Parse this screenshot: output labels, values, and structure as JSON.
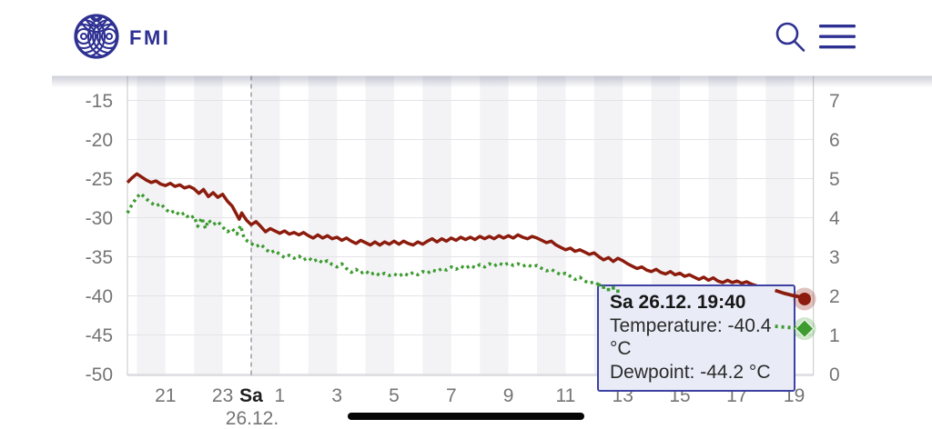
{
  "header": {
    "brand": "FMI",
    "search_icon": "magnifying-glass",
    "menu_icon": "hamburger"
  },
  "tooltip": {
    "title": "Sa 26.12. 19:40",
    "temperature_line": "Temperature: -40.4 °C",
    "dewpoint_line": "Dewpoint: -44.2 °C"
  },
  "colors": {
    "brand_navy": "#2e3192",
    "temperature_red": "#8c1c0d",
    "dewpoint_green": "#3d9b30",
    "tooltip_bg": "#e9ecf7",
    "tooltip_border": "#3d42a2",
    "axis_text": "#757575",
    "day_text": "#1f1f1f",
    "gridline": "#e4e4e8",
    "axis_line": "#cfcfd4",
    "stripe": "#f3f3f6",
    "midnight_dash": "#8f8f8f"
  },
  "chart_data": {
    "type": "line",
    "title": "",
    "xlabel": "",
    "ylabel_left": "",
    "ylabel_right": "",
    "grid": true,
    "legend_position": "none",
    "xlim_hours_rel_midnight": [
      -4.33,
      19.67
    ],
    "ylim_left_celsius": [
      -50.2,
      -11.8
    ],
    "ylim_right": [
      -0.05,
      7.65
    ],
    "left_axis_ticks": [
      -15,
      -20,
      -25,
      -30,
      -35,
      -40,
      -45,
      -50
    ],
    "right_axis_ticks": [
      7,
      6,
      5,
      4,
      3,
      2,
      1,
      0
    ],
    "x_axis_labels": [
      {
        "t": -3,
        "label": "21",
        "bold": false
      },
      {
        "t": -1,
        "label": "23",
        "bold": false
      },
      {
        "t": 0,
        "label": "Sa",
        "bold": true
      },
      {
        "t": 1,
        "label": "1",
        "bold": false
      },
      {
        "t": 3,
        "label": "3",
        "bold": false
      },
      {
        "t": 5,
        "label": "5",
        "bold": false
      },
      {
        "t": 7,
        "label": "7",
        "bold": false
      },
      {
        "t": 9,
        "label": "9",
        "bold": false
      },
      {
        "t": 11,
        "label": "11",
        "bold": false
      },
      {
        "t": 13,
        "label": "13",
        "bold": false
      },
      {
        "t": 15,
        "label": "15",
        "bold": false
      },
      {
        "t": 17,
        "label": "17",
        "bold": false
      },
      {
        "t": 19,
        "label": "19",
        "bold": false
      }
    ],
    "day_label": {
      "t": 0,
      "label": "26.12."
    },
    "midnight_line_t": 0,
    "markers": [
      {
        "series": "Temperature",
        "shape": "circle",
        "value": -40.4
      },
      {
        "series": "Dewpoint",
        "shape": "diamond",
        "value": -44.2
      }
    ],
    "series": [
      {
        "name": "Temperature",
        "unit": "°C",
        "color": "#8c1c0d",
        "style": "solid",
        "points": [
          [
            -4.33,
            -25.5
          ],
          [
            -4.17,
            -24.9
          ],
          [
            -4.0,
            -24.4
          ],
          [
            -3.83,
            -24.8
          ],
          [
            -3.67,
            -25.2
          ],
          [
            -3.5,
            -25.5
          ],
          [
            -3.33,
            -25.3
          ],
          [
            -3.17,
            -25.7
          ],
          [
            -3.0,
            -25.9
          ],
          [
            -2.83,
            -25.6
          ],
          [
            -2.67,
            -26.0
          ],
          [
            -2.5,
            -25.8
          ],
          [
            -2.33,
            -26.2
          ],
          [
            -2.17,
            -26.0
          ],
          [
            -2.0,
            -26.3
          ],
          [
            -1.83,
            -26.9
          ],
          [
            -1.67,
            -26.4
          ],
          [
            -1.5,
            -27.3
          ],
          [
            -1.33,
            -26.8
          ],
          [
            -1.17,
            -27.4
          ],
          [
            -1.0,
            -27.0
          ],
          [
            -0.83,
            -27.9
          ],
          [
            -0.67,
            -28.5
          ],
          [
            -0.55,
            -29.3
          ],
          [
            -0.42,
            -30.2
          ],
          [
            -0.33,
            -29.4
          ],
          [
            -0.17,
            -30.3
          ],
          [
            0.0,
            -30.9
          ],
          [
            0.17,
            -30.5
          ],
          [
            0.33,
            -31.1
          ],
          [
            0.5,
            -31.8
          ],
          [
            0.67,
            -31.4
          ],
          [
            0.83,
            -31.7
          ],
          [
            1.0,
            -32.0
          ],
          [
            1.17,
            -31.7
          ],
          [
            1.33,
            -32.1
          ],
          [
            1.5,
            -31.9
          ],
          [
            1.67,
            -32.2
          ],
          [
            1.83,
            -31.9
          ],
          [
            2.0,
            -32.3
          ],
          [
            2.17,
            -32.6
          ],
          [
            2.33,
            -32.2
          ],
          [
            2.5,
            -32.6
          ],
          [
            2.67,
            -32.3
          ],
          [
            2.83,
            -32.7
          ],
          [
            3.0,
            -32.5
          ],
          [
            3.17,
            -32.9
          ],
          [
            3.33,
            -32.6
          ],
          [
            3.5,
            -33.0
          ],
          [
            3.67,
            -33.3
          ],
          [
            3.83,
            -32.9
          ],
          [
            4.0,
            -33.2
          ],
          [
            4.17,
            -33.5
          ],
          [
            4.33,
            -33.1
          ],
          [
            4.5,
            -33.5
          ],
          [
            4.67,
            -33.1
          ],
          [
            4.83,
            -33.4
          ],
          [
            5.0,
            -33.0
          ],
          [
            5.17,
            -33.4
          ],
          [
            5.33,
            -33.0
          ],
          [
            5.5,
            -33.3
          ],
          [
            5.67,
            -33.5
          ],
          [
            5.83,
            -33.1
          ],
          [
            6.0,
            -33.4
          ],
          [
            6.17,
            -33.0
          ],
          [
            6.33,
            -32.7
          ],
          [
            6.5,
            -33.1
          ],
          [
            6.67,
            -32.7
          ],
          [
            6.83,
            -33.0
          ],
          [
            7.0,
            -32.6
          ],
          [
            7.17,
            -32.9
          ],
          [
            7.33,
            -32.5
          ],
          [
            7.5,
            -32.8
          ],
          [
            7.67,
            -32.5
          ],
          [
            7.83,
            -32.8
          ],
          [
            8.0,
            -32.4
          ],
          [
            8.17,
            -32.7
          ],
          [
            8.33,
            -32.4
          ],
          [
            8.5,
            -32.7
          ],
          [
            8.67,
            -32.3
          ],
          [
            8.83,
            -32.6
          ],
          [
            9.0,
            -32.3
          ],
          [
            9.17,
            -32.6
          ],
          [
            9.33,
            -32.2
          ],
          [
            9.5,
            -32.5
          ],
          [
            9.67,
            -32.7
          ],
          [
            9.83,
            -32.4
          ],
          [
            10.0,
            -32.6
          ],
          [
            10.17,
            -32.9
          ],
          [
            10.33,
            -33.2
          ],
          [
            10.5,
            -33.0
          ],
          [
            10.67,
            -33.5
          ],
          [
            10.83,
            -33.8
          ],
          [
            11.0,
            -34.1
          ],
          [
            11.17,
            -33.9
          ],
          [
            11.33,
            -34.3
          ],
          [
            11.5,
            -34.1
          ],
          [
            11.67,
            -34.4
          ],
          [
            11.83,
            -34.7
          ],
          [
            12.0,
            -34.5
          ],
          [
            12.17,
            -35.0
          ],
          [
            12.33,
            -35.4
          ],
          [
            12.5,
            -35.1
          ],
          [
            12.67,
            -35.6
          ],
          [
            12.83,
            -35.2
          ],
          [
            13.0,
            -35.5
          ],
          [
            13.17,
            -35.9
          ],
          [
            13.33,
            -36.2
          ],
          [
            13.5,
            -36.5
          ],
          [
            13.67,
            -36.3
          ],
          [
            13.83,
            -36.7
          ],
          [
            14.0,
            -36.9
          ],
          [
            14.17,
            -36.6
          ],
          [
            14.33,
            -37.0
          ],
          [
            14.5,
            -37.2
          ],
          [
            14.67,
            -36.9
          ],
          [
            14.83,
            -37.3
          ],
          [
            15.0,
            -37.1
          ],
          [
            15.17,
            -37.5
          ],
          [
            15.33,
            -37.3
          ],
          [
            15.5,
            -37.6
          ],
          [
            15.67,
            -37.9
          ],
          [
            15.83,
            -37.6
          ],
          [
            16.0,
            -38.0
          ],
          [
            16.17,
            -37.7
          ],
          [
            16.33,
            -38.1
          ],
          [
            16.5,
            -38.3
          ],
          [
            16.67,
            -38.0
          ],
          [
            16.83,
            -38.3
          ],
          [
            17.0,
            -38.1
          ],
          [
            17.17,
            -38.4
          ],
          [
            17.33,
            -38.2
          ],
          [
            17.5,
            -38.5
          ],
          [
            17.67,
            -38.7
          ],
          [
            18.0,
            -39.0
          ],
          [
            18.33,
            -39.3
          ],
          [
            18.67,
            -39.7
          ],
          [
            19.0,
            -40.0
          ],
          [
            19.33,
            -40.2
          ],
          [
            19.67,
            -40.4
          ]
        ]
      },
      {
        "name": "Dewpoint",
        "unit": "°C",
        "color": "#3d9b30",
        "style": "dotted",
        "points": [
          [
            -4.33,
            -29.4
          ],
          [
            -4.17,
            -28.3
          ],
          [
            -4.0,
            -27.4
          ],
          [
            -3.87,
            -26.9
          ],
          [
            -3.67,
            -27.6
          ],
          [
            -3.5,
            -28.1
          ],
          [
            -3.33,
            -28.5
          ],
          [
            -3.17,
            -28.2
          ],
          [
            -3.0,
            -28.9
          ],
          [
            -2.83,
            -29.4
          ],
          [
            -2.67,
            -29.1
          ],
          [
            -2.5,
            -29.7
          ],
          [
            -2.33,
            -29.4
          ],
          [
            -2.17,
            -30.1
          ],
          [
            -2.0,
            -29.8
          ],
          [
            -1.87,
            -31.1
          ],
          [
            -1.73,
            -30.0
          ],
          [
            -1.6,
            -31.4
          ],
          [
            -1.5,
            -30.3
          ],
          [
            -1.33,
            -30.9
          ],
          [
            -1.17,
            -30.5
          ],
          [
            -1.0,
            -31.2
          ],
          [
            -0.83,
            -31.8
          ],
          [
            -0.67,
            -31.4
          ],
          [
            -0.5,
            -32.1
          ],
          [
            -0.37,
            -31.0
          ],
          [
            -0.25,
            -32.6
          ],
          [
            -0.13,
            -33.0
          ],
          [
            0.0,
            -33.3
          ],
          [
            0.17,
            -33.7
          ],
          [
            0.33,
            -33.4
          ],
          [
            0.5,
            -34.0
          ],
          [
            0.67,
            -34.5
          ],
          [
            0.83,
            -34.2
          ],
          [
            1.0,
            -34.7
          ],
          [
            1.17,
            -35.1
          ],
          [
            1.33,
            -34.8
          ],
          [
            1.5,
            -35.2
          ],
          [
            1.67,
            -34.9
          ],
          [
            1.83,
            -35.4
          ],
          [
            2.0,
            -35.1
          ],
          [
            2.17,
            -35.6
          ],
          [
            2.33,
            -35.3
          ],
          [
            2.5,
            -35.8
          ],
          [
            2.67,
            -35.5
          ],
          [
            2.83,
            -36.0
          ],
          [
            3.0,
            -36.3
          ],
          [
            3.17,
            -35.9
          ],
          [
            3.33,
            -36.5
          ],
          [
            3.5,
            -37.0
          ],
          [
            3.67,
            -36.6
          ],
          [
            3.83,
            -37.1
          ],
          [
            4.0,
            -36.8
          ],
          [
            4.17,
            -37.3
          ],
          [
            4.33,
            -37.0
          ],
          [
            4.5,
            -37.4
          ],
          [
            4.67,
            -37.1
          ],
          [
            4.83,
            -37.4
          ],
          [
            5.0,
            -37.2
          ],
          [
            5.17,
            -37.5
          ],
          [
            5.33,
            -37.1
          ],
          [
            5.5,
            -37.4
          ],
          [
            5.67,
            -37.0
          ],
          [
            5.83,
            -37.3
          ],
          [
            6.0,
            -36.9
          ],
          [
            6.17,
            -37.1
          ],
          [
            6.33,
            -36.7
          ],
          [
            6.5,
            -36.9
          ],
          [
            6.67,
            -36.5
          ],
          [
            6.83,
            -36.7
          ],
          [
            7.0,
            -36.3
          ],
          [
            7.17,
            -36.6
          ],
          [
            7.33,
            -36.2
          ],
          [
            7.5,
            -36.5
          ],
          [
            7.67,
            -36.1
          ],
          [
            7.83,
            -36.4
          ],
          [
            8.0,
            -36.0
          ],
          [
            8.17,
            -36.3
          ],
          [
            8.33,
            -35.9
          ],
          [
            8.5,
            -36.2
          ],
          [
            8.67,
            -35.8
          ],
          [
            8.83,
            -36.1
          ],
          [
            9.0,
            -35.8
          ],
          [
            9.17,
            -36.1
          ],
          [
            9.33,
            -35.9
          ],
          [
            9.5,
            -36.2
          ],
          [
            9.67,
            -36.0
          ],
          [
            9.83,
            -36.3
          ],
          [
            10.0,
            -36.1
          ],
          [
            10.17,
            -36.5
          ],
          [
            10.33,
            -36.8
          ],
          [
            10.5,
            -36.6
          ],
          [
            10.67,
            -37.0
          ],
          [
            10.83,
            -37.3
          ],
          [
            11.0,
            -37.1
          ],
          [
            11.17,
            -37.5
          ],
          [
            11.33,
            -37.9
          ],
          [
            11.5,
            -37.6
          ],
          [
            11.67,
            -38.1
          ],
          [
            11.83,
            -38.4
          ],
          [
            12.0,
            -38.2
          ],
          [
            12.17,
            -38.6
          ],
          [
            12.33,
            -38.9
          ],
          [
            12.5,
            -39.2
          ],
          [
            12.67,
            -39.0
          ],
          [
            12.83,
            -39.4
          ],
          [
            13.0,
            -39.7
          ],
          [
            13.33,
            -40.1
          ],
          [
            13.67,
            -40.5
          ],
          [
            14.0,
            -40.8
          ],
          [
            14.33,
            -41.1
          ],
          [
            14.67,
            -41.4
          ],
          [
            15.0,
            -41.7
          ],
          [
            15.33,
            -41.9
          ],
          [
            15.67,
            -42.2
          ],
          [
            16.0,
            -42.4
          ],
          [
            16.33,
            -42.7
          ],
          [
            16.67,
            -42.9
          ],
          [
            17.0,
            -43.1
          ],
          [
            17.33,
            -43.3
          ],
          [
            17.67,
            -43.5
          ],
          [
            18.0,
            -43.7
          ],
          [
            18.33,
            -43.9
          ],
          [
            18.67,
            -44.0
          ],
          [
            19.0,
            -44.1
          ],
          [
            19.33,
            -44.15
          ],
          [
            19.67,
            -44.2
          ]
        ]
      }
    ]
  }
}
